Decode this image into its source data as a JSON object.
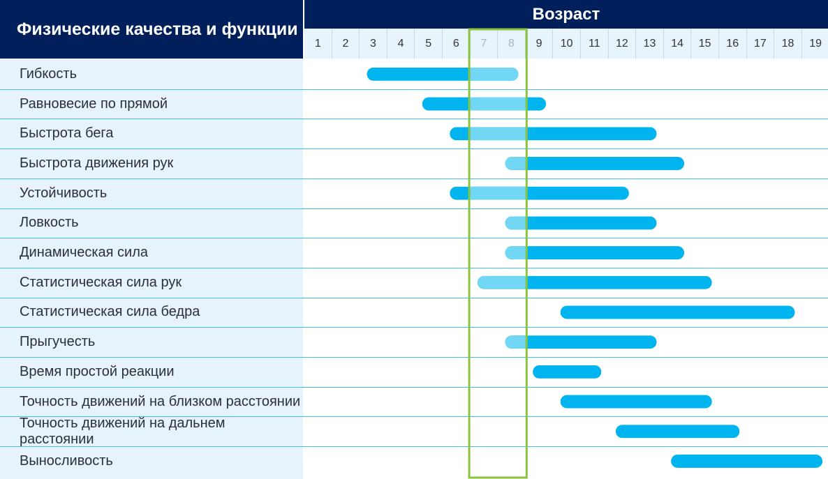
{
  "header": {
    "left_title": "Физические качества и функции",
    "right_title": "Возраст"
  },
  "chart_data": {
    "type": "gantt",
    "ages": [
      1,
      2,
      3,
      4,
      5,
      6,
      7,
      8,
      9,
      10,
      11,
      12,
      13,
      14,
      15,
      16,
      17,
      18,
      19
    ],
    "highlight_ages": [
      7,
      8
    ],
    "colors": {
      "bar": "#00b4ef",
      "bar_light": "#72d6f5",
      "highlight_border": "#8ac43f",
      "header_bg": "#001f5b",
      "label_bg": "#e6f3fc",
      "separator": "#44bde6"
    },
    "rows": [
      {
        "label": "Гибкость",
        "start": 3,
        "end": 8
      },
      {
        "label": "Равновесие по прямой",
        "start": 5,
        "end": 9
      },
      {
        "label": "Быстрота бега",
        "start": 6,
        "end": 13
      },
      {
        "label": "Быстрота движения рук",
        "start": 8,
        "end": 14
      },
      {
        "label": "Устойчивость",
        "start": 6,
        "end": 12
      },
      {
        "label": "Ловкость",
        "start": 8,
        "end": 13
      },
      {
        "label": "Динамическая сила",
        "start": 8,
        "end": 14
      },
      {
        "label": "Статистическая сила рук",
        "start": 7,
        "end": 15
      },
      {
        "label": "Статистическая сила бедра",
        "start": 10,
        "end": 18
      },
      {
        "label": "Прыгучесть",
        "start": 8,
        "end": 13
      },
      {
        "label": "Время простой реакции",
        "start": 9,
        "end": 11
      },
      {
        "label": "Точность движений на близком расстоянии",
        "start": 10,
        "end": 15
      },
      {
        "label": "Точность движений на дальнем расстоянии",
        "start": 12,
        "end": 16
      },
      {
        "label": "Выносливость",
        "start": 14,
        "end": 19
      }
    ]
  }
}
